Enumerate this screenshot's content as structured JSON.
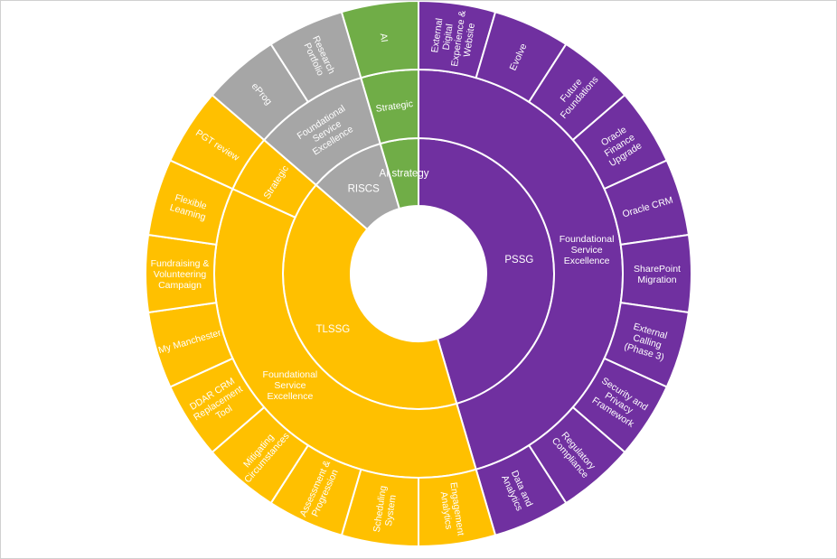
{
  "chart_data": {
    "type": "sunburst",
    "colors": {
      "PSSG": "#7030A0",
      "TLSSG": "#FFC000",
      "RISCS": "#A6A6A6",
      "AI strategy": "#70AD47"
    },
    "root": [
      {
        "name": "PSSG",
        "children": [
          {
            "name": "Foundational Service Excellence",
            "children": [
              {
                "name": "External Digital Experience & Website",
                "value": 1
              },
              {
                "name": "Evolve",
                "value": 1
              },
              {
                "name": "Future Foundations",
                "value": 1
              },
              {
                "name": "Oracle Finance Upgrade",
                "value": 1
              },
              {
                "name": "Oracle CRM",
                "value": 1
              },
              {
                "name": "SharePoint Migration",
                "value": 1
              },
              {
                "name": "External Calling (Phase 3)",
                "value": 1
              },
              {
                "name": "Security and Privacy Framework",
                "value": 1
              },
              {
                "name": "Regulatory Compliance",
                "value": 1
              },
              {
                "name": "Data and Analytics",
                "value": 1
              }
            ]
          }
        ]
      },
      {
        "name": "TLSSG",
        "children": [
          {
            "name": "Foundational Service Excellence",
            "children": [
              {
                "name": "Engagement Analytics",
                "value": 1
              },
              {
                "name": "Scheduling System",
                "value": 1
              },
              {
                "name": "Assessment & Progression",
                "value": 1
              },
              {
                "name": "Mitigating Circumstances",
                "value": 1
              },
              {
                "name": "DDAR CRM Replacement Tool",
                "value": 1
              },
              {
                "name": "My Manchester",
                "value": 1
              },
              {
                "name": "Fundraising & Volunteering Campaign",
                "value": 1
              },
              {
                "name": "Flexible Learning",
                "value": 1
              }
            ]
          },
          {
            "name": "Strategic",
            "children": [
              {
                "name": "PGT review",
                "value": 1
              }
            ]
          }
        ]
      },
      {
        "name": "RISCS",
        "children": [
          {
            "name": "Foundational Service Excellence",
            "children": [
              {
                "name": "eProg",
                "value": 1
              },
              {
                "name": "Research Portfolio",
                "value": 1
              }
            ]
          }
        ]
      },
      {
        "name": "AI strategy",
        "children": [
          {
            "name": "Strategic",
            "children": [
              {
                "name": "AI",
                "value": 1
              }
            ]
          }
        ]
      }
    ]
  }
}
